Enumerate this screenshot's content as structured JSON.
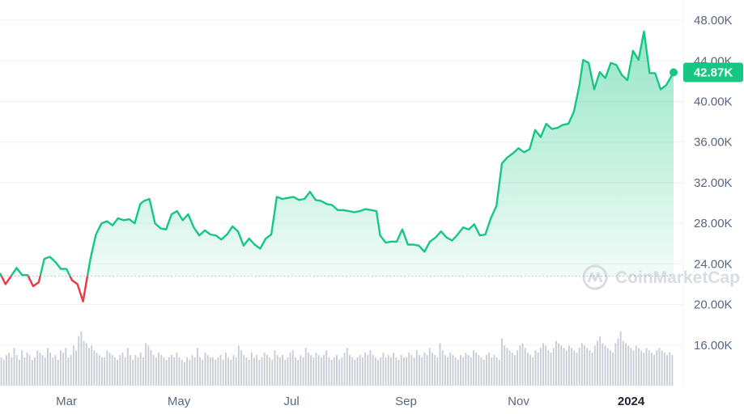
{
  "chart_data": {
    "type": "area",
    "y_unit": "USD",
    "y_ticks": [
      "48.00K",
      "44.00K",
      "40.00K",
      "36.00K",
      "32.00K",
      "28.00K",
      "24.00K",
      "20.00K",
      "16.00K"
    ],
    "y_tick_values": [
      48000,
      44000,
      40000,
      36000,
      32000,
      28000,
      24000,
      20000,
      16000
    ],
    "x_ticks": [
      "Mar",
      "May",
      "Jul",
      "Sep",
      "Nov",
      "2024"
    ],
    "x_tick_dates": [
      "2023-03-01",
      "2023-05-01",
      "2023-07-01",
      "2023-09-01",
      "2023-11-01",
      "2024-01-01"
    ],
    "ylim": [
      12000,
      50000
    ],
    "xlim": [
      "2023-01-24",
      "2024-01-24"
    ],
    "baseline": 22800,
    "current_price": 42870,
    "current_price_label": "42.87K",
    "colors": {
      "up": "#16c784",
      "down": "#ea3943",
      "up_fill_top": "#16c784",
      "axis_text": "#58667e",
      "grid": "#eff2f5",
      "volume": "#c9ced6"
    },
    "series": [
      {
        "x": [
          "2023-01-24",
          "2023-01-27",
          "2023-01-30",
          "2023-02-02",
          "2023-02-05",
          "2023-02-08",
          "2023-02-11",
          "2023-02-14",
          "2023-02-17",
          "2023-02-20",
          "2023-02-23",
          "2023-02-26",
          "2023-03-01",
          "2023-03-04",
          "2023-03-07",
          "2023-03-10",
          "2023-03-12",
          "2023-03-14",
          "2023-03-17",
          "2023-03-20",
          "2023-03-23",
          "2023-03-26",
          "2023-03-29",
          "2023-04-01",
          "2023-04-04",
          "2023-04-07",
          "2023-04-10",
          "2023-04-12",
          "2023-04-15",
          "2023-04-18",
          "2023-04-21",
          "2023-04-24",
          "2023-04-27",
          "2023-04-30",
          "2023-05-03",
          "2023-05-06",
          "2023-05-09",
          "2023-05-12",
          "2023-05-15",
          "2023-05-18",
          "2023-05-21",
          "2023-05-24",
          "2023-05-27",
          "2023-05-30",
          "2023-06-02",
          "2023-06-05",
          "2023-06-08",
          "2023-06-11",
          "2023-06-14",
          "2023-06-17",
          "2023-06-20",
          "2023-06-23",
          "2023-06-26",
          "2023-06-29",
          "2023-07-02",
          "2023-07-05",
          "2023-07-08",
          "2023-07-11",
          "2023-07-14",
          "2023-07-17",
          "2023-07-20",
          "2023-07-23",
          "2023-07-26",
          "2023-07-29",
          "2023-08-01",
          "2023-08-04",
          "2023-08-07",
          "2023-08-10",
          "2023-08-13",
          "2023-08-16",
          "2023-08-18",
          "2023-08-21",
          "2023-08-24",
          "2023-08-27",
          "2023-08-30",
          "2023-09-02",
          "2023-09-05",
          "2023-09-08",
          "2023-09-11",
          "2023-09-14",
          "2023-09-17",
          "2023-09-20",
          "2023-09-23",
          "2023-09-26",
          "2023-09-29",
          "2023-10-02",
          "2023-10-05",
          "2023-10-08",
          "2023-10-11",
          "2023-10-14",
          "2023-10-17",
          "2023-10-20",
          "2023-10-23",
          "2023-10-26",
          "2023-10-29",
          "2023-11-01",
          "2023-11-04",
          "2023-11-07",
          "2023-11-10",
          "2023-11-13",
          "2023-11-16",
          "2023-11-19",
          "2023-11-22",
          "2023-11-25",
          "2023-11-28",
          "2023-12-01",
          "2023-12-04",
          "2023-12-06",
          "2023-12-09",
          "2023-12-12",
          "2023-12-15",
          "2023-12-18",
          "2023-12-21",
          "2023-12-24",
          "2023-12-27",
          "2023-12-30",
          "2024-01-02",
          "2024-01-05",
          "2024-01-08",
          "2024-01-11",
          "2024-01-14",
          "2024-01-17",
          "2024-01-20",
          "2024-01-24"
        ],
        "values": [
          23100,
          22000,
          22800,
          23600,
          22900,
          22900,
          21800,
          22200,
          24500,
          24700,
          24200,
          23500,
          23500,
          22400,
          22000,
          20300,
          22400,
          24500,
          26900,
          28000,
          28200,
          27800,
          28500,
          28300,
          28400,
          28000,
          29900,
          30200,
          30400,
          28000,
          27500,
          27400,
          28900,
          29200,
          28300,
          28900,
          27600,
          26800,
          27300,
          26900,
          26800,
          26400,
          26900,
          27700,
          27200,
          25800,
          26500,
          25900,
          25500,
          26500,
          26900,
          30600,
          30400,
          30500,
          30600,
          30300,
          30400,
          31100,
          30300,
          30200,
          29900,
          29800,
          29300,
          29300,
          29200,
          29100,
          29200,
          29400,
          29300,
          29200,
          26800,
          26100,
          26200,
          26200,
          27400,
          25900,
          25900,
          25800,
          25200,
          26200,
          26600,
          27200,
          26600,
          26300,
          26900,
          27600,
          27400,
          27900,
          26800,
          26900,
          28500,
          29700,
          33900,
          34500,
          34900,
          35400,
          35000,
          35300,
          37200,
          36500,
          37800,
          37300,
          37400,
          37700,
          37800,
          39000,
          41600,
          44100,
          43800,
          41200,
          42900,
          42300,
          43800,
          43600,
          42600,
          42100,
          45000,
          44100,
          46900,
          42800,
          42800,
          41200,
          41600,
          42870
        ]
      }
    ],
    "volume": {
      "comment_free": true,
      "values": [
        12,
        11,
        13,
        14,
        12,
        16,
        13,
        11,
        15,
        12,
        14,
        13,
        11,
        12,
        15,
        14,
        13,
        12,
        16,
        14,
        12,
        13,
        11,
        15,
        14,
        16,
        12,
        13,
        17,
        15,
        21,
        23,
        19,
        18,
        16,
        17,
        15,
        14,
        13,
        12,
        12,
        15,
        14,
        13,
        12,
        11,
        13,
        14,
        12,
        16,
        13,
        11,
        13,
        12,
        14,
        12,
        18,
        17,
        15,
        13,
        12,
        14,
        13,
        12,
        11,
        12,
        13,
        12,
        14,
        12,
        11,
        10,
        12,
        11,
        13,
        12,
        16,
        12,
        11,
        14,
        13,
        12,
        12,
        11,
        12,
        13,
        11,
        14,
        12,
        11,
        13,
        12,
        17,
        15,
        13,
        12,
        11,
        14,
        12,
        13,
        11,
        12,
        14,
        13,
        12,
        11,
        15,
        13,
        12,
        13,
        11,
        12,
        14,
        15,
        12,
        11,
        13,
        12,
        16,
        14,
        13,
        12,
        14,
        13,
        12,
        13,
        15,
        12,
        11,
        12,
        13,
        11,
        12,
        14,
        16,
        13,
        12,
        11,
        12,
        13,
        12,
        14,
        13,
        15,
        13,
        12,
        11,
        12,
        14,
        12,
        13,
        12,
        14,
        12,
        11,
        13,
        12,
        12,
        14,
        13,
        12,
        15,
        13,
        12,
        14,
        13,
        16,
        14,
        13,
        12,
        18,
        15,
        13,
        12,
        14,
        13,
        12,
        11,
        13,
        12,
        14,
        13,
        12,
        15,
        14,
        13,
        12,
        11,
        13,
        14,
        12,
        13,
        12,
        11,
        20,
        17,
        16,
        15,
        14,
        13,
        15,
        17,
        18,
        16,
        14,
        13,
        12,
        15,
        14,
        16,
        18,
        17,
        15,
        14,
        16,
        19,
        18,
        17,
        16,
        15,
        17,
        16,
        15,
        14,
        16,
        18,
        17,
        16,
        15,
        14,
        17,
        19,
        21,
        18,
        17,
        16,
        15,
        14,
        18,
        20,
        23,
        19,
        18,
        17,
        16,
        15,
        17,
        16,
        15,
        14,
        16,
        15,
        14,
        13,
        15,
        16,
        15,
        14,
        13,
        14,
        13
      ]
    }
  },
  "watermark": {
    "text": "CoinMarketCap"
  }
}
